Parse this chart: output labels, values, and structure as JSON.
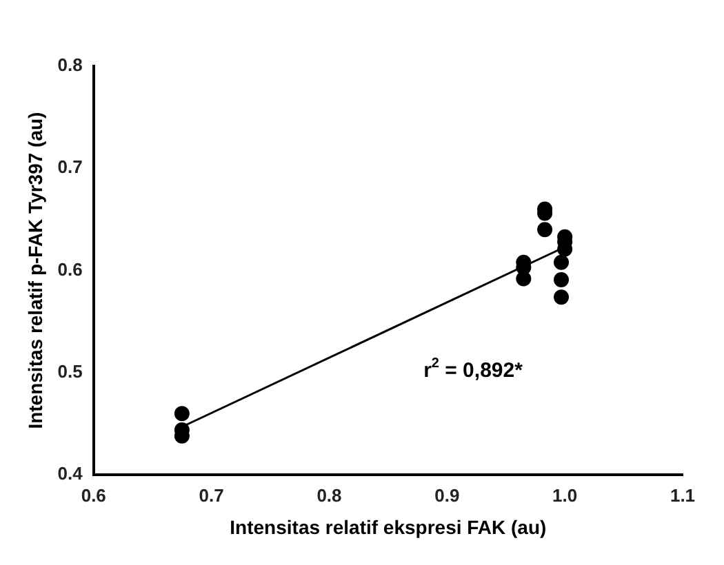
{
  "chart_data": {
    "type": "scatter",
    "xlabel": "Intensitas relatif ekspresi FAK (au)",
    "ylabel": "Intensitas relatif p-FAK Tyr397 (au)",
    "xlim": [
      0.6,
      1.1
    ],
    "xticks": [
      {
        "value": 0.6,
        "label": "0.6"
      },
      {
        "value": 0.7,
        "label": "0.7"
      },
      {
        "value": 0.8,
        "label": "0.8"
      },
      {
        "value": 0.9,
        "label": "0.9"
      },
      {
        "value": 1.0,
        "label": "1.0"
      },
      {
        "value": 1.1,
        "label": "1.1"
      }
    ],
    "ylim": [
      0.4,
      0.8
    ],
    "yticks": [
      {
        "value": 0.4,
        "label": "0.4"
      },
      {
        "value": 0.5,
        "label": "0.5"
      },
      {
        "value": 0.6,
        "label": "0.6"
      },
      {
        "value": 0.7,
        "label": "0.7"
      },
      {
        "value": 0.8,
        "label": "0.8"
      }
    ],
    "grid": false,
    "legend": false,
    "marker": "circle",
    "series": [
      {
        "color": "#000000",
        "x": [
          0.675,
          0.675,
          0.675,
          0.965,
          0.965,
          0.965,
          0.983,
          0.983,
          0.983,
          1.0,
          1.0,
          1.0,
          0.997,
          0.997,
          0.997
        ],
        "values": [
          0.46,
          0.444,
          0.438,
          0.608,
          0.603,
          0.592,
          0.66,
          0.656,
          0.64,
          0.633,
          0.628,
          0.621,
          0.608,
          0.591,
          0.574
        ]
      },
      {
        "type": "line",
        "color": "#000000",
        "x": [
          0.675,
          1.0
        ],
        "values": [
          0.447,
          0.623
        ],
        "marker": "none"
      }
    ],
    "annotations": [
      "r$^{2}$ = 0,892*"
    ]
  }
}
